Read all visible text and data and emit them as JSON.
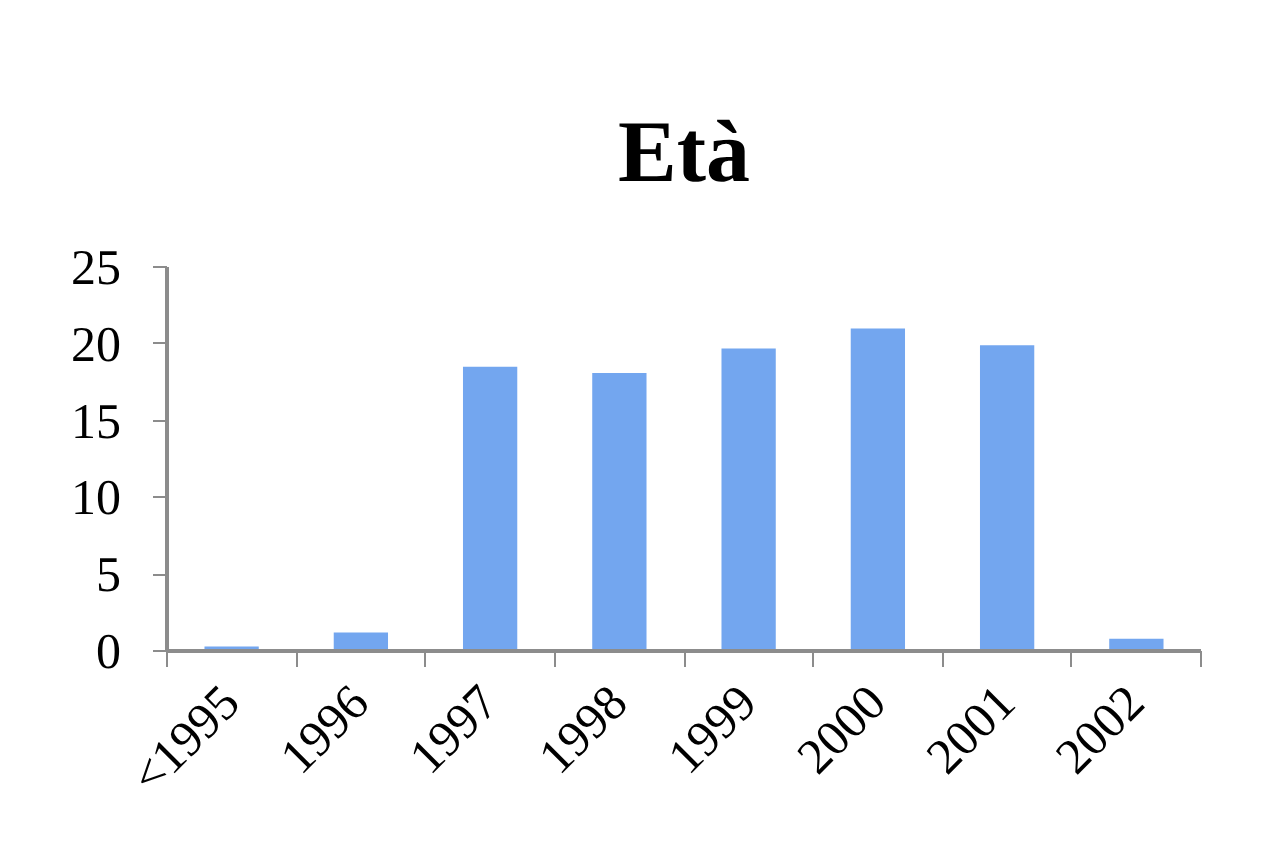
{
  "chart_data": {
    "type": "bar",
    "title": "Età",
    "categories": [
      "<1995",
      "1996",
      "1997",
      "1998",
      "1999",
      "2000",
      "2001",
      "2002"
    ],
    "values": [
      0.3,
      1.2,
      18.5,
      18.1,
      19.7,
      21.0,
      19.9,
      0.8
    ],
    "color": "#73a6ef",
    "ylim": [
      0,
      25
    ],
    "yticks": [
      0,
      5,
      10,
      15,
      20,
      25
    ],
    "grid": false
  }
}
